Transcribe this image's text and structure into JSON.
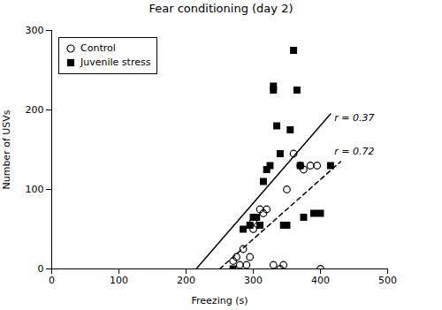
{
  "chart_data": {
    "type": "scatter",
    "title": "Fear conditioning (day 2)",
    "xlabel": "Freezing (s)",
    "ylabel": "Number of USVs",
    "xlim": [
      0,
      500
    ],
    "ylim": [
      0,
      300
    ],
    "xticks": [
      0,
      100,
      200,
      300,
      400,
      500
    ],
    "yticks": [
      0,
      100,
      200,
      300
    ],
    "legend": "upper left",
    "series": [
      {
        "name": "Control",
        "type": "scatter",
        "marker": "open-circle",
        "color": "#000000",
        "x": [
          270,
          275,
          280,
          285,
          290,
          295,
          300,
          300,
          310,
          315,
          320,
          330,
          340,
          345,
          350,
          360,
          370,
          375,
          385,
          395,
          400
        ],
        "values": [
          10,
          15,
          5,
          25,
          5,
          15,
          50,
          60,
          75,
          70,
          75,
          5,
          0,
          5,
          100,
          145,
          130,
          125,
          130,
          130,
          0
        ]
      },
      {
        "name": "Juvenile stress",
        "type": "scatter",
        "marker": "square",
        "color": "#000000",
        "x": [
          270,
          285,
          295,
          300,
          305,
          310,
          315,
          320,
          325,
          330,
          330,
          335,
          340,
          345,
          350,
          355,
          360,
          365,
          370,
          375,
          390,
          400,
          415
        ],
        "values": [
          0,
          50,
          55,
          65,
          65,
          55,
          110,
          125,
          130,
          225,
          230,
          180,
          145,
          55,
          55,
          175,
          275,
          225,
          130,
          65,
          70,
          70,
          130
        ]
      }
    ],
    "lines": [
      {
        "type": "line",
        "line_style": "solid",
        "color": "#000000",
        "x": [
          215,
          415
        ],
        "values": [
          0,
          195
        ]
      },
      {
        "type": "line",
        "line_style": "dashed",
        "color": "#000000",
        "x": [
          250,
          430
        ],
        "values": [
          0,
          135
        ]
      }
    ],
    "annotations": [
      {
        "text": "r = 0.37",
        "x": 418,
        "y": 190
      },
      {
        "text": "r = 0.72",
        "x": 418,
        "y": 148
      }
    ]
  }
}
